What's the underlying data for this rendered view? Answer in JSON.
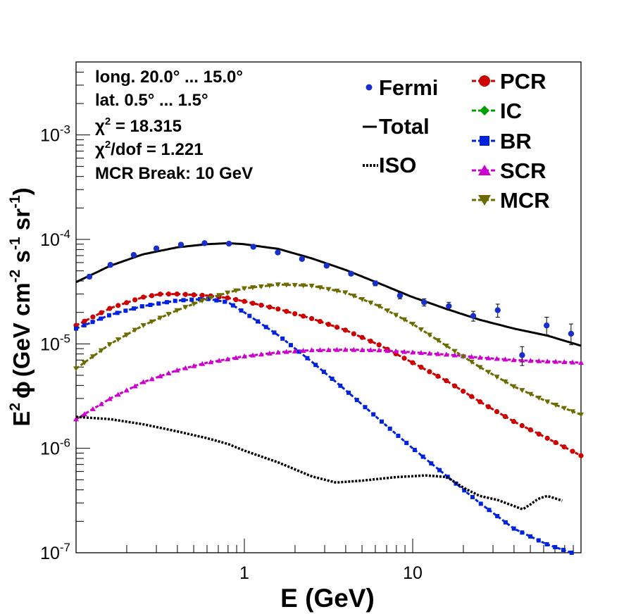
{
  "chart_data": {
    "type": "scatter",
    "xscale": "log",
    "yscale": "log",
    "xlim": [
      0.1,
      100
    ],
    "ylim": [
      1e-07,
      0.005
    ],
    "xlabel": "E (GeV)",
    "ylabel": "E² ϕ (GeV cm⁻² s⁻¹ sr⁻¹)",
    "ylabel_parts": {
      "e": "E",
      "sq": "2",
      "phi": "ϕ",
      "paren": "(GeV cm",
      "m2": "-2",
      "s": " s",
      "m1a": "-1",
      "sr": " sr",
      "m1b": "-1",
      "close": ")"
    },
    "x_tick_labels": [
      {
        "v": 1,
        "label": "1"
      },
      {
        "v": 10,
        "label": "10"
      }
    ],
    "y_tick_labels": [
      {
        "v": 1e-07,
        "base": "10",
        "exp": "-7"
      },
      {
        "v": 1e-06,
        "base": "10",
        "exp": "-6"
      },
      {
        "v": 1e-05,
        "base": "10",
        "exp": "-5"
      },
      {
        "v": 0.0001,
        "base": "10",
        "exp": "-4"
      },
      {
        "v": 0.001,
        "base": "10",
        "exp": "-3"
      }
    ],
    "annotations": [
      {
        "text": "long. 20.0° ... 15.0°"
      },
      {
        "text": "lat. 0.5° ... 1.5°"
      },
      {
        "pre": "χ",
        "sup": "2",
        "post": " = 18.315"
      },
      {
        "pre": "χ",
        "sup": "2",
        "post": "/dof = 1.221"
      },
      {
        "text": "MCR Break: 10 GeV"
      }
    ],
    "legend_left": [
      "Fermi",
      "Total",
      "ISO"
    ],
    "legend_right": [
      "PCR",
      "IC",
      "BR",
      "SCR",
      "MCR"
    ],
    "legend_placement": "top-right",
    "colors": {
      "Fermi": "#1a2ecc",
      "Total": "#000000",
      "ISO": "#000000",
      "PCR": "#cc0000",
      "IC": "#00a000",
      "BR": "#0022dd",
      "SCR": "#cc00cc",
      "MCR": "#6b6b00"
    },
    "fermi": {
      "x": [
        0.12,
        0.16,
        0.22,
        0.3,
        0.42,
        0.58,
        0.81,
        1.13,
        1.58,
        2.2,
        3.08,
        4.3,
        6.0,
        8.4,
        11.7,
        16.4,
        22.9,
        32.0,
        44.7,
        62.5,
        87.3
      ],
      "y": [
        4.4e-05,
        5.7e-05,
        7.1e-05,
        8.2e-05,
        8.9e-05,
        9.2e-05,
        9.1e-05,
        8.5e-05,
        7.5e-05,
        6.5e-05,
        5.6e-05,
        4.7e-05,
        3.8e-05,
        2.9e-05,
        2.5e-05,
        2.3e-05,
        1.85e-05,
        2.1e-05,
        7.8e-06,
        1.5e-05,
        1.25e-05
      ],
      "err_lo": [
        4.2e-05,
        5.5e-05,
        6.9e-05,
        8e-05,
        8.7e-05,
        9e-05,
        8.9e-05,
        8.3e-05,
        7.3e-05,
        6.3e-05,
        5.4e-05,
        4.5e-05,
        3.6e-05,
        2.7e-05,
        2.3e-05,
        2.1e-05,
        1.65e-05,
        1.8e-05,
        6.2e-06,
        1.22e-05,
        9.8e-06
      ],
      "err_hi": [
        4.6e-05,
        5.9e-05,
        7.3e-05,
        8.4e-05,
        9.1e-05,
        9.4e-05,
        9.3e-05,
        8.7e-05,
        7.7e-05,
        6.7e-05,
        5.8e-05,
        4.9e-05,
        4e-05,
        3.1e-05,
        2.7e-05,
        2.5e-05,
        2.05e-05,
        2.4e-05,
        9.4e-06,
        1.8e-05,
        1.55e-05
      ]
    },
    "series": [
      {
        "key": "Total",
        "style": "solid",
        "marker": "none",
        "x": [
          0.1,
          0.16,
          0.25,
          0.4,
          0.6,
          0.8,
          1.0,
          1.6,
          2.5,
          4,
          6.3,
          10,
          16,
          25,
          40,
          63,
          100
        ],
        "y": [
          3.9e-05,
          5.6e-05,
          7.2e-05,
          8.4e-05,
          9e-05,
          9.2e-05,
          9e-05,
          8.1e-05,
          6.6e-05,
          5.1e-05,
          3.8e-05,
          2.8e-05,
          2.15e-05,
          1.7e-05,
          1.4e-05,
          1.2e-05,
          9.6e-06
        ]
      },
      {
        "key": "PCR",
        "style": "dashed",
        "marker": "circle",
        "x": [
          0.1,
          0.16,
          0.25,
          0.32,
          0.4,
          0.6,
          0.8,
          1.0,
          1.6,
          2.5,
          4,
          6.3,
          10,
          16,
          25,
          40,
          63,
          100
        ],
        "y": [
          1.5e-05,
          2.2e-05,
          2.8e-05,
          3e-05,
          3e-05,
          2.9e-05,
          2.75e-05,
          2.55e-05,
          2.15e-05,
          1.75e-05,
          1.35e-05,
          9.8e-06,
          6.6e-06,
          4.4e-06,
          2.8e-06,
          1.8e-06,
          1.25e-06,
          8.5e-07
        ]
      },
      {
        "key": "BR",
        "style": "dashed",
        "marker": "square",
        "x": [
          0.1,
          0.16,
          0.25,
          0.4,
          0.6,
          0.8,
          1.0,
          1.6,
          2.5,
          4,
          6.3,
          10,
          16,
          25,
          40,
          63,
          88
        ],
        "y": [
          1.4e-05,
          1.9e-05,
          2.3e-05,
          2.6e-05,
          2.7e-05,
          2.5e-05,
          2e-05,
          1.2e-05,
          6.8e-06,
          3.6e-06,
          1.9e-06,
          1e-06,
          5.4e-07,
          3e-07,
          1.7e-07,
          1.2e-07,
          1e-07
        ]
      },
      {
        "key": "SCR",
        "style": "dashed",
        "marker": "triangle-up",
        "x": [
          0.1,
          0.16,
          0.25,
          0.4,
          0.6,
          1.0,
          1.6,
          2.5,
          4,
          6.3,
          10,
          16,
          25,
          40,
          63,
          100
        ],
        "y": [
          1.9e-06,
          3e-06,
          4.3e-06,
          5.6e-06,
          6.6e-06,
          7.6e-06,
          8.3e-06,
          8.7e-06,
          8.8e-06,
          8.7e-06,
          8.3e-06,
          7.9e-06,
          7.4e-06,
          7e-06,
          6.8e-06,
          6.6e-06
        ]
      },
      {
        "key": "MCR",
        "style": "dashed",
        "marker": "triangle-down",
        "x": [
          0.1,
          0.16,
          0.25,
          0.4,
          0.6,
          0.8,
          1.0,
          1.6,
          2.5,
          4,
          6.3,
          10,
          16,
          25,
          40,
          63,
          100
        ],
        "y": [
          5.8e-06,
          1e-05,
          1.5e-05,
          2.1e-05,
          2.7e-05,
          3.1e-05,
          3.4e-05,
          3.7e-05,
          3.6e-05,
          3.1e-05,
          2.3e-05,
          1.55e-05,
          9.5e-06,
          6e-06,
          3.9e-06,
          2.8e-06,
          2.1e-06
        ]
      },
      {
        "key": "ISO",
        "style": "dotted",
        "marker": "none",
        "x": [
          0.1,
          0.16,
          0.25,
          0.4,
          0.6,
          0.8,
          1.0,
          1.6,
          2.5,
          3.5,
          5,
          8,
          12,
          16,
          20,
          25,
          32,
          40,
          45,
          50,
          56,
          63,
          80
        ],
        "y": [
          2e-06,
          1.9e-06,
          1.7e-06,
          1.45e-06,
          1.25e-06,
          1.1e-06,
          9.5e-07,
          7.3e-07,
          5.4e-07,
          4.7e-07,
          4.9e-07,
          5.3e-07,
          5.5e-07,
          5.3e-07,
          4.2e-07,
          3.5e-07,
          3.2e-07,
          2.8e-07,
          2.6e-07,
          2.9e-07,
          3.3e-07,
          3.5e-07,
          3.1e-07
        ]
      }
    ]
  }
}
